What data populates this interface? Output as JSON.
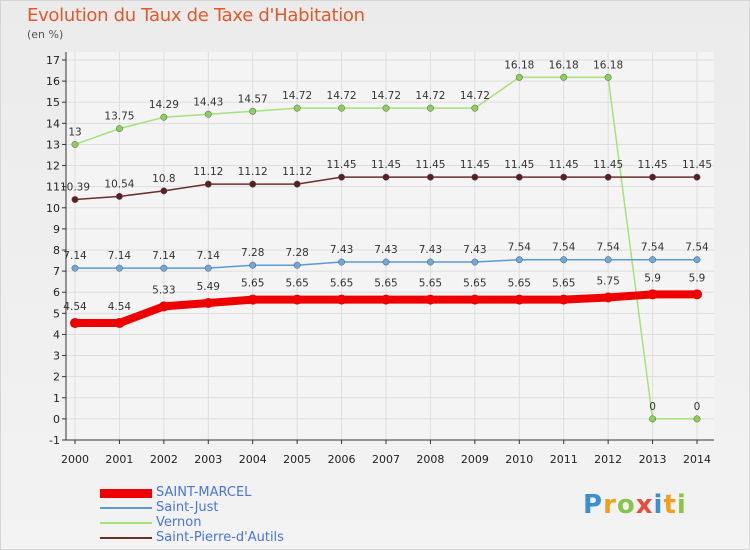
{
  "header": {
    "title": "Evolution du Taux de Taxe d'Habitation",
    "subtitle": "(en %)"
  },
  "logo": {
    "text": "Proxiti",
    "letters": [
      {
        "ch": "P",
        "color": "#3a8fd1"
      },
      {
        "ch": "r",
        "color": "#f0a020"
      },
      {
        "ch": "o",
        "color": "#8bc34a"
      },
      {
        "ch": "x",
        "color": "#e94c3d"
      },
      {
        "ch": "i",
        "color": "#3a8fd1"
      },
      {
        "ch": "t",
        "color": "#f0a020"
      },
      {
        "ch": "i",
        "color": "#8bc34a"
      }
    ]
  },
  "chart_data": {
    "type": "line",
    "title": "Evolution du Taux de Taxe d'Habitation",
    "subtitle": "(en %)",
    "x": [
      "2000",
      "2001",
      "2002",
      "2003",
      "2004",
      "2005",
      "2006",
      "2007",
      "2008",
      "2009",
      "2010",
      "2011",
      "2012",
      "2013",
      "2014"
    ],
    "ylim": [
      -1,
      17
    ],
    "yticks": [
      "-1",
      "0",
      "1",
      "2",
      "3",
      "4",
      "5",
      "6",
      "7",
      "8",
      "9",
      "10",
      "11",
      "12",
      "13",
      "14",
      "15",
      "16",
      "17"
    ],
    "grid": true,
    "legend_position": "bottom-left",
    "series": [
      {
        "name": "SAINT-MARCEL",
        "color": "#ee0000",
        "marker_color": "#ee0000",
        "line_width": 8,
        "values": [
          4.54,
          4.54,
          5.33,
          5.49,
          5.65,
          5.65,
          5.65,
          5.65,
          5.65,
          5.65,
          5.65,
          5.65,
          5.75,
          5.9,
          5.9
        ],
        "labels": [
          "4.54",
          "4.54",
          "5.33",
          "5.49",
          "5.65",
          "5.65",
          "5.65",
          "5.65",
          "5.65",
          "5.65",
          "5.65",
          "5.65",
          "5.75",
          "5.9",
          "5.9"
        ]
      },
      {
        "name": "Saint-Just",
        "color": "#5b9bd5",
        "marker_color": "#6fa8dc",
        "line_width": 1.5,
        "values": [
          7.14,
          7.14,
          7.14,
          7.14,
          7.28,
          7.28,
          7.43,
          7.43,
          7.43,
          7.43,
          7.54,
          7.54,
          7.54,
          7.54,
          7.54
        ],
        "labels": [
          "7.14",
          "7.14",
          "7.14",
          "7.14",
          "7.28",
          "7.28",
          "7.43",
          "7.43",
          "7.43",
          "7.43",
          "7.54",
          "7.54",
          "7.54",
          "7.54",
          "7.54"
        ]
      },
      {
        "name": "Vernon",
        "color": "#a5e27a",
        "marker_color": "#8bd05a",
        "line_width": 1.5,
        "values": [
          13,
          13.75,
          14.29,
          14.43,
          14.57,
          14.72,
          14.72,
          14.72,
          14.72,
          14.72,
          16.18,
          16.18,
          16.18,
          0,
          0
        ],
        "labels": [
          "13",
          "13.75",
          "14.29",
          "14.43",
          "14.57",
          "14.72",
          "14.72",
          "14.72",
          "14.72",
          "14.72",
          "16.18",
          "16.18",
          "16.18",
          "0",
          "0"
        ]
      },
      {
        "name": "Saint-Pierre-d'Autils",
        "color": "#6b2f2f",
        "marker_color": "#5a1f1f",
        "line_width": 1.5,
        "values": [
          10.39,
          10.54,
          10.8,
          11.12,
          11.12,
          11.12,
          11.45,
          11.45,
          11.45,
          11.45,
          11.45,
          11.45,
          11.45,
          11.45,
          11.45
        ],
        "labels": [
          "10.39",
          "10.54",
          "10.8",
          "11.12",
          "11.12",
          "11.12",
          "11.45",
          "11.45",
          "11.45",
          "11.45",
          "11.45",
          "11.45",
          "11.45",
          "11.45",
          "11.45"
        ]
      }
    ]
  }
}
